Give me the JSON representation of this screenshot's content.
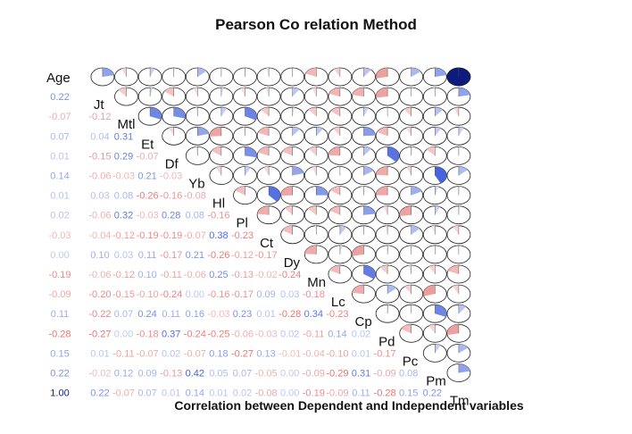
{
  "title": "Pearson Co relation Method",
  "subtitle": "Correlation between Dependent and Independent variables",
  "chart_data": {
    "type": "heatmap",
    "variables": [
      "Age",
      "Jt",
      "Mtl",
      "Et",
      "Df",
      "Yb",
      "Hl",
      "Pl",
      "Ct",
      "Dy",
      "Mn",
      "Lc",
      "Cp",
      "Pd",
      "Pc",
      "Pm",
      "Tm"
    ],
    "lower_triangle_rows": [
      [
        0.22
      ],
      [
        -0.07,
        -0.12
      ],
      [
        0.07,
        0.04,
        0.31
      ],
      [
        0.01,
        -0.15,
        0.29,
        -0.07
      ],
      [
        0.14,
        -0.06,
        -0.03,
        0.21,
        -0.03
      ],
      [
        0.01,
        0.03,
        0.08,
        -0.26,
        -0.16,
        -0.08
      ],
      [
        0.02,
        -0.06,
        0.32,
        -0.03,
        0.28,
        0.08,
        -0.16
      ],
      [
        -0.03,
        -0.04,
        -0.12,
        -0.19,
        -0.19,
        -0.07,
        0.38,
        -0.23
      ],
      [
        0.0,
        0.1,
        0.03,
        0.11,
        -0.17,
        0.21,
        -0.26,
        -0.12,
        -0.17
      ],
      [
        -0.19,
        -0.06,
        -0.12,
        0.1,
        -0.11,
        -0.06,
        0.25,
        -0.13,
        -0.02,
        -0.24
      ],
      [
        -0.09,
        -0.2,
        -0.15,
        -0.1,
        -0.24,
        0.0,
        -0.16,
        -0.17,
        0.09,
        0.03,
        -0.18
      ],
      [
        0.11,
        -0.22,
        0.07,
        0.24,
        0.11,
        0.16,
        -0.03,
        0.23,
        0.01,
        -0.28,
        0.34,
        -0.23
      ],
      [
        -0.28,
        -0.27,
        0.0,
        -0.18,
        0.37,
        -0.24,
        -0.25,
        -0.06,
        -0.03,
        0.02,
        -0.11,
        0.14,
        0.02
      ],
      [
        0.15,
        0.01,
        -0.11,
        -0.07,
        0.02,
        -0.07,
        0.18,
        -0.27,
        0.13,
        -0.01,
        -0.04,
        -0.1,
        0.01,
        -0.17
      ],
      [
        0.22,
        -0.02,
        0.12,
        0.09,
        -0.13,
        0.42,
        0.05,
        0.07,
        -0.05,
        0.0,
        -0.09,
        -0.29,
        0.31,
        -0.09,
        0.08
      ],
      [
        1.0,
        0.22,
        -0.07,
        0.07,
        0.01,
        0.14,
        0.01,
        0.02,
        -0.08,
        0.0,
        -0.19,
        -0.09,
        0.11,
        -0.28,
        0.15,
        0.22
      ]
    ],
    "colors": {
      "positive": "#3b5bdb",
      "negative": "#e57373",
      "strong_positive": "#0d1a80"
    }
  }
}
